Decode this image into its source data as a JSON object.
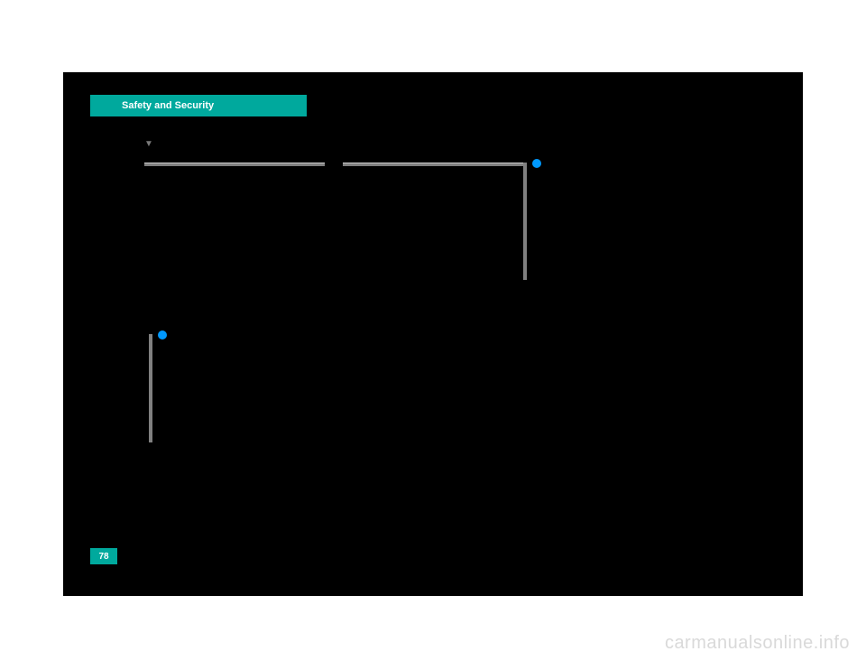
{
  "header": {
    "title": "Safety and Security",
    "background_color": "#00a99d",
    "text_color": "#ffffff"
  },
  "section_marker": "▼",
  "page_number": "78",
  "watermark": "carmanualsonline.info",
  "colors": {
    "page_bg": "#000000",
    "accent": "#00a99d",
    "rule": "#808080",
    "dot": "#0099ff",
    "watermark": "#d9d9d9"
  }
}
